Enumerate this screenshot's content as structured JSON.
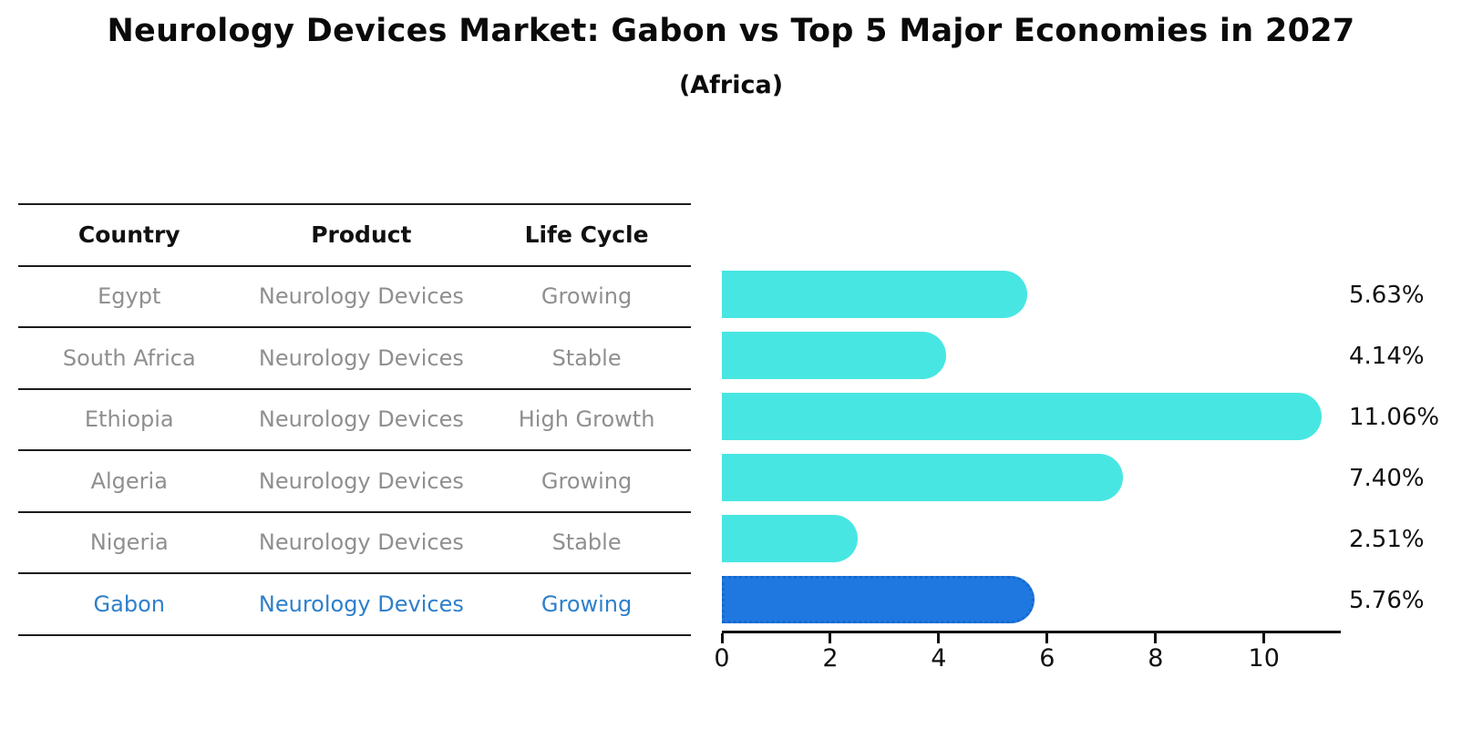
{
  "title": "Neurology Devices Market: Gabon vs Top 5 Major Economies in 2027",
  "subtitle": "(Africa)",
  "table": {
    "headers": [
      "Country",
      "Product",
      "Life Cycle"
    ],
    "rows": [
      {
        "country": "Egypt",
        "product": "Neurology Devices",
        "life_cycle": "Growing",
        "highlight": false
      },
      {
        "country": "South Africa",
        "product": "Neurology Devices",
        "life_cycle": "Stable",
        "highlight": false
      },
      {
        "country": "Ethiopia",
        "product": "Neurology Devices",
        "life_cycle": "High Growth",
        "highlight": false
      },
      {
        "country": "Algeria",
        "product": "Neurology Devices",
        "life_cycle": "Growing",
        "highlight": false
      },
      {
        "country": "Nigeria",
        "product": "Neurology Devices",
        "life_cycle": "Stable",
        "highlight": false
      },
      {
        "country": "Gabon",
        "product": "Neurology Devices",
        "life_cycle": "Growing",
        "highlight": true
      }
    ]
  },
  "chart_data": {
    "type": "bar",
    "orientation": "horizontal",
    "categories": [
      "Egypt",
      "South Africa",
      "Ethiopia",
      "Algeria",
      "Nigeria",
      "Gabon"
    ],
    "values": [
      5.63,
      4.14,
      11.06,
      7.4,
      2.51,
      5.76
    ],
    "value_labels": [
      "5.63%",
      "4.14%",
      "11.06%",
      "7.40%",
      "2.51%",
      "5.76%"
    ],
    "xlim": [
      0,
      11.4
    ],
    "xticks": [
      0,
      2,
      4,
      6,
      8,
      10
    ],
    "xtick_labels": [
      "0",
      "2",
      "4",
      "6",
      "8",
      "10"
    ],
    "grid": false,
    "legend": "none",
    "highlight_index": 5,
    "highlight_style": "dotted-border"
  },
  "colors": {
    "bar": "#48e6e2",
    "highlight_bar": "#1e78e0",
    "highlight_text": "#2e7fcb",
    "table_text": "#8f8f8f",
    "header_text": "#111111",
    "axis": "#111111"
  }
}
